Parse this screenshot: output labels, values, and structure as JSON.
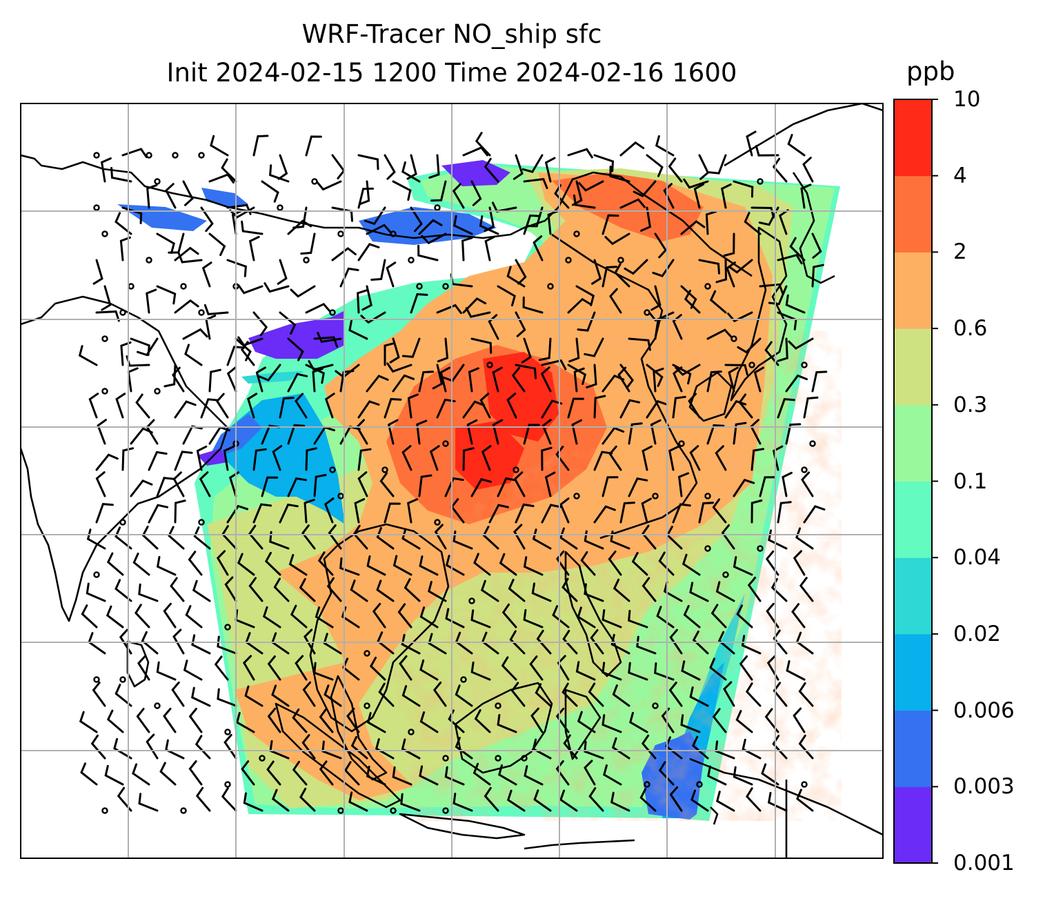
{
  "title_line1": "WRF-Tracer NO_ship sfc",
  "title_line2": "Init 2024-02-15 1200 Time 2024-02-16 1600",
  "colorbar": {
    "unit": "ppb",
    "tick_labels": [
      "0.001",
      "0.003",
      "0.006",
      "0.02",
      "0.04",
      "0.1",
      "0.3",
      "0.6",
      "2",
      "4",
      "10"
    ],
    "colors": [
      "#6a2cf6",
      "#3472f2",
      "#08b0ec",
      "#2ed8d5",
      "#64fbc0",
      "#9af89c",
      "#cee282",
      "#fdb061",
      "#fe713a",
      "#ff2a17"
    ]
  },
  "map": {
    "field_name": "NO_ship surface concentration",
    "gridlines": "on",
    "coastlines": "on",
    "wind_barbs": "on",
    "calm_circles": "on"
  }
}
